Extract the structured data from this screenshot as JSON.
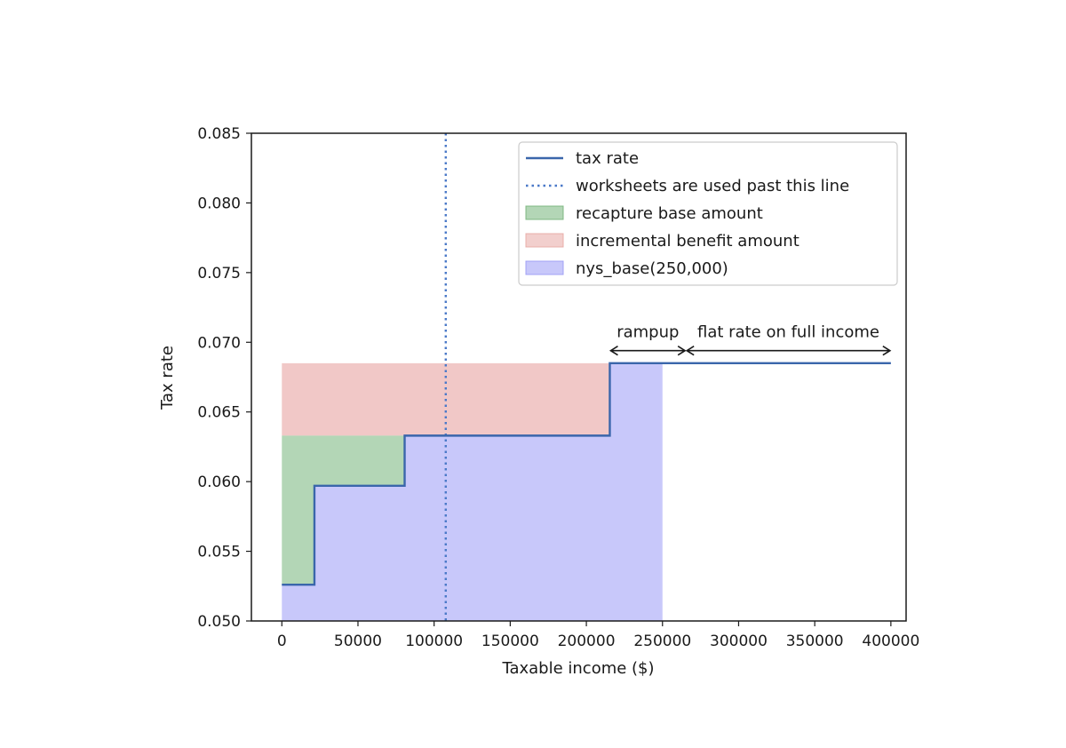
{
  "chart_data": {
    "type": "area",
    "title": "",
    "xlabel": "Taxable income ($)",
    "ylabel": "Tax rate",
    "xlim": [
      -20000,
      410000
    ],
    "ylim": [
      0.05,
      0.085
    ],
    "xticks": [
      0,
      50000,
      100000,
      150000,
      200000,
      250000,
      300000,
      350000,
      400000
    ],
    "yticks": [
      0.05,
      0.055,
      0.06,
      0.065,
      0.07,
      0.075,
      0.08,
      0.085
    ],
    "xtick_labels": [
      "0",
      "50000",
      "100000",
      "150000",
      "200000",
      "250000",
      "300000",
      "350000",
      "400000"
    ],
    "ytick_labels": [
      "0.050",
      "0.055",
      "0.060",
      "0.065",
      "0.070",
      "0.075",
      "0.080",
      "0.085"
    ],
    "grid": false,
    "legend_position": "top-right",
    "series": [
      {
        "name": "tax rate",
        "kind": "step-line",
        "color": "#3a66ab",
        "points": [
          [
            0,
            0.0526
          ],
          [
            21400,
            0.0526
          ],
          [
            21400,
            0.0597
          ],
          [
            80650,
            0.0597
          ],
          [
            80650,
            0.0633
          ],
          [
            215400,
            0.0633
          ],
          [
            215400,
            0.0685
          ],
          [
            400000,
            0.0685
          ]
        ]
      },
      {
        "name": "worksheets are used past this line",
        "kind": "vline",
        "color": "#4a79c8",
        "x": 107650
      },
      {
        "name": "recapture base amount",
        "kind": "fill",
        "color": "#75b47a",
        "x_range": [
          0,
          80650
        ],
        "y_top": 0.0633
      },
      {
        "name": "incremental benefit amount",
        "kind": "fill",
        "color": "#e8a7a4",
        "x_range": [
          0,
          215400
        ],
        "y_top": 0.0685
      },
      {
        "name": "nys_base(250,000)",
        "kind": "fill",
        "color": "#9a9af5",
        "x_range": [
          0,
          250000
        ]
      }
    ],
    "annotations": [
      {
        "text": "rampup",
        "x_range": [
          215400,
          265400
        ],
        "y": 0.0694
      },
      {
        "text": "flat rate on full income",
        "x_range": [
          265400,
          400000
        ],
        "y": 0.0694
      }
    ]
  }
}
